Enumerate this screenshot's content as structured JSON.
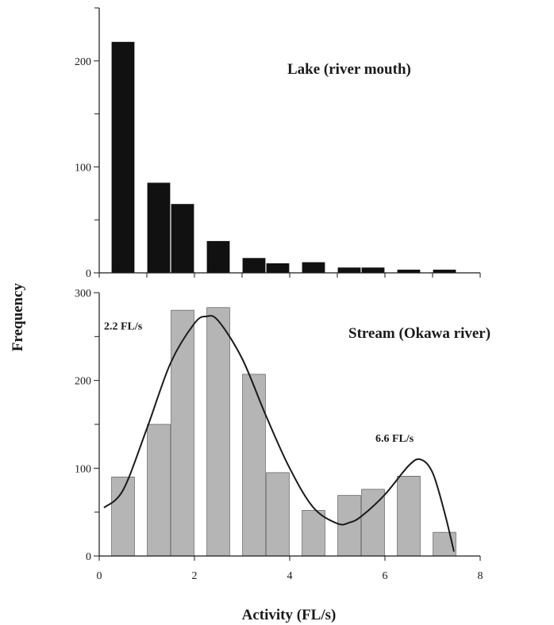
{
  "figure": {
    "ylabel": "Frequency",
    "xlabel": "Activity (FL/s)"
  },
  "chart_data": [
    {
      "type": "bar",
      "title": "Lake (river mouth)",
      "bar_color": "#111111",
      "xlim": [
        0,
        8
      ],
      "ylim": [
        0,
        250
      ],
      "yticks_major": [
        0,
        100,
        200
      ],
      "yticks_minor": [
        50,
        150,
        250
      ],
      "xticks": [
        0,
        1,
        2,
        3,
        4,
        5,
        6,
        7,
        8
      ],
      "x": [
        0.5,
        1.25,
        1.75,
        2.5,
        3.25,
        3.75,
        4.5,
        5.25,
        5.75,
        6.5,
        7.25
      ],
      "values": [
        218,
        85,
        65,
        30,
        14,
        9,
        10,
        5,
        5,
        3,
        3
      ]
    },
    {
      "type": "bar",
      "title": "Stream (Okawa river)",
      "bar_color": "#b5b5b5",
      "xlim": [
        0,
        8
      ],
      "ylim": [
        0,
        300
      ],
      "yticks": [
        0,
        100,
        200,
        300
      ],
      "yticks_minor": [
        50,
        150,
        250
      ],
      "xticks": [
        0,
        2,
        4,
        6,
        8
      ],
      "xtick_labels": [
        "0",
        "2",
        "4",
        "6",
        "8"
      ],
      "x": [
        0.5,
        1.25,
        1.75,
        2.5,
        3.25,
        3.75,
        4.5,
        5.25,
        5.75,
        6.5,
        7.25
      ],
      "values": [
        90,
        150,
        280,
        283,
        207,
        95,
        52,
        69,
        76,
        91,
        27
      ],
      "curve": {
        "x": [
          0.1,
          0.5,
          1.0,
          1.5,
          2.0,
          2.25,
          2.5,
          3.0,
          3.5,
          4.0,
          4.5,
          5.0,
          5.25,
          5.5,
          6.0,
          6.5,
          6.75,
          7.0,
          7.25,
          7.45
        ],
        "y": [
          55,
          75,
          145,
          220,
          265,
          273,
          268,
          225,
          160,
          100,
          55,
          37,
          38,
          45,
          70,
          103,
          110,
          95,
          50,
          5
        ]
      },
      "annotations": [
        {
          "text": "2.2 FL/s",
          "x": 0.1,
          "y": 258
        },
        {
          "text": "6.6 FL/s",
          "x": 5.8,
          "y": 130
        }
      ]
    }
  ]
}
